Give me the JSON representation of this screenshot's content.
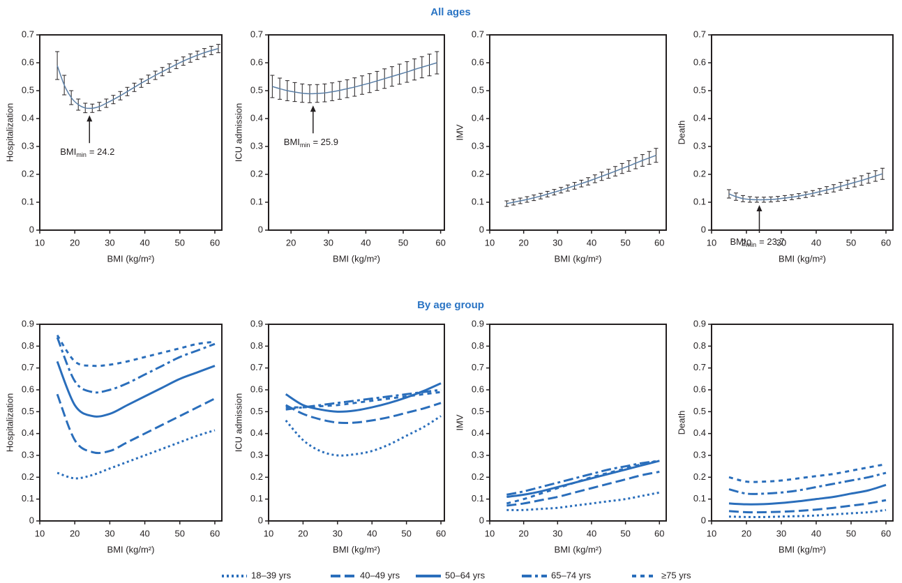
{
  "sections": [
    "All ages",
    "By age group"
  ],
  "chart_data": [
    {
      "type": "line",
      "y_label": "Hospitalization",
      "x_label": "BMI (kg/m²)",
      "color": "#231f20",
      "x": [
        15,
        17,
        19,
        21,
        23,
        25,
        27,
        29,
        31,
        33,
        35,
        37,
        39,
        41,
        43,
        45,
        47,
        49,
        51,
        53,
        55,
        57,
        59,
        61
      ],
      "values": [
        0.59,
        0.52,
        0.475,
        0.45,
        0.438,
        0.437,
        0.443,
        0.455,
        0.468,
        0.482,
        0.497,
        0.512,
        0.527,
        0.541,
        0.555,
        0.568,
        0.581,
        0.594,
        0.606,
        0.617,
        0.627,
        0.636,
        0.644,
        0.651
      ],
      "errors": [
        0.05,
        0.035,
        0.025,
        0.02,
        0.017,
        0.015,
        0.015,
        0.015,
        0.015,
        0.015,
        0.015,
        0.015,
        0.015,
        0.015,
        0.015,
        0.015,
        0.015,
        0.015,
        0.015,
        0.015,
        0.015,
        0.015,
        0.015,
        0.015
      ],
      "xlim": [
        10,
        62
      ],
      "ylim": [
        0,
        0.7
      ],
      "xticks": [
        10,
        20,
        30,
        40,
        50,
        60
      ],
      "yticks": [
        0,
        0.1,
        0.2,
        0.3,
        0.4,
        0.5,
        0.6,
        0.7
      ],
      "annotation": {
        "text": "BMI",
        "subscript": "min",
        "value_label": "= 24.2",
        "x": 24.2
      }
    },
    {
      "type": "line",
      "y_label": "ICU admission",
      "x_label": "BMI (kg/m²)",
      "color": "#231f20",
      "x": [
        15,
        17,
        19,
        21,
        23,
        25,
        27,
        29,
        31,
        33,
        35,
        37,
        39,
        41,
        43,
        45,
        47,
        49,
        51,
        53,
        55,
        57,
        59
      ],
      "values": [
        0.515,
        0.507,
        0.5,
        0.495,
        0.491,
        0.489,
        0.49,
        0.492,
        0.496,
        0.501,
        0.507,
        0.513,
        0.52,
        0.527,
        0.535,
        0.543,
        0.551,
        0.559,
        0.567,
        0.576,
        0.584,
        0.592,
        0.6
      ],
      "errors": [
        0.04,
        0.038,
        0.036,
        0.034,
        0.033,
        0.032,
        0.032,
        0.032,
        0.032,
        0.032,
        0.032,
        0.033,
        0.033,
        0.034,
        0.034,
        0.035,
        0.035,
        0.036,
        0.037,
        0.038,
        0.038,
        0.039,
        0.04
      ],
      "xlim": [
        14,
        61
      ],
      "ylim": [
        0,
        0.7
      ],
      "xticks": [
        20,
        30,
        40,
        50,
        60
      ],
      "yticks": [
        0,
        0.1,
        0.2,
        0.3,
        0.4,
        0.5,
        0.6,
        0.7
      ],
      "annotation": {
        "text": "BMI",
        "subscript": "min",
        "value_label": "= 25.9",
        "x": 25.9
      }
    },
    {
      "type": "line",
      "y_label": "IMV",
      "x_label": "BMI (kg/m²)",
      "color": "#231f20",
      "x": [
        15,
        17,
        19,
        21,
        23,
        25,
        27,
        29,
        31,
        33,
        35,
        37,
        39,
        41,
        43,
        45,
        47,
        49,
        51,
        53,
        55,
        57,
        59
      ],
      "values": [
        0.095,
        0.1,
        0.105,
        0.11,
        0.116,
        0.122,
        0.129,
        0.136,
        0.143,
        0.151,
        0.159,
        0.167,
        0.175,
        0.184,
        0.193,
        0.202,
        0.211,
        0.221,
        0.23,
        0.24,
        0.25,
        0.259,
        0.268
      ],
      "errors": [
        0.01,
        0.01,
        0.01,
        0.01,
        0.01,
        0.01,
        0.01,
        0.01,
        0.01,
        0.011,
        0.012,
        0.012,
        0.013,
        0.014,
        0.015,
        0.016,
        0.017,
        0.018,
        0.019,
        0.02,
        0.021,
        0.023,
        0.025
      ],
      "xlim": [
        10,
        62
      ],
      "ylim": [
        0,
        0.7
      ],
      "xticks": [
        10,
        20,
        30,
        40,
        50,
        60
      ],
      "yticks": [
        0,
        0.1,
        0.2,
        0.3,
        0.4,
        0.5,
        0.6,
        0.7
      ]
    },
    {
      "type": "line",
      "y_label": "Death",
      "x_label": "BMI (kg/m²)",
      "color": "#231f20",
      "x": [
        15,
        17,
        19,
        21,
        23,
        25,
        27,
        29,
        31,
        33,
        35,
        37,
        39,
        41,
        43,
        45,
        47,
        49,
        51,
        53,
        55,
        57,
        59
      ],
      "values": [
        0.13,
        0.12,
        0.113,
        0.11,
        0.109,
        0.109,
        0.11,
        0.112,
        0.115,
        0.118,
        0.122,
        0.127,
        0.132,
        0.138,
        0.144,
        0.15,
        0.157,
        0.164,
        0.171,
        0.178,
        0.186,
        0.194,
        0.202
      ],
      "errors": [
        0.015,
        0.013,
        0.011,
        0.01,
        0.009,
        0.009,
        0.009,
        0.009,
        0.009,
        0.009,
        0.009,
        0.01,
        0.01,
        0.011,
        0.012,
        0.013,
        0.014,
        0.015,
        0.016,
        0.017,
        0.018,
        0.019,
        0.02
      ],
      "xlim": [
        10,
        62
      ],
      "ylim": [
        0,
        0.7
      ],
      "xticks": [
        10,
        20,
        30,
        40,
        50,
        60
      ],
      "yticks": [
        0,
        0.1,
        0.2,
        0.3,
        0.4,
        0.5,
        0.6,
        0.7
      ],
      "annotation": {
        "text": "BMI",
        "subscript": "min",
        "value_label": "= 23.7",
        "x": 23.7
      }
    },
    {
      "type": "line",
      "y_label": "Hospitalization",
      "x_label": "BMI (kg/m²)",
      "x": [
        15,
        20,
        25,
        30,
        35,
        40,
        45,
        50,
        55,
        60
      ],
      "series": [
        {
          "name": "18–39 yrs",
          "color": "#2a6ebb",
          "dash": "dotted",
          "values": [
            0.22,
            0.195,
            0.21,
            0.24,
            0.27,
            0.3,
            0.33,
            0.36,
            0.39,
            0.415
          ]
        },
        {
          "name": "40–49 yrs",
          "color": "#2a6ebb",
          "dash": "dashed",
          "values": [
            0.58,
            0.37,
            0.315,
            0.32,
            0.36,
            0.4,
            0.44,
            0.48,
            0.52,
            0.56
          ]
        },
        {
          "name": "50–64 yrs",
          "color": "#2a6ebb",
          "dash": "solid",
          "values": [
            0.73,
            0.53,
            0.48,
            0.49,
            0.53,
            0.57,
            0.61,
            0.65,
            0.68,
            0.71
          ]
        },
        {
          "name": "65–74 yrs",
          "color": "#2a6ebb",
          "dash": "dashdot",
          "values": [
            0.84,
            0.64,
            0.59,
            0.6,
            0.63,
            0.67,
            0.71,
            0.75,
            0.78,
            0.81
          ]
        },
        {
          "name": "≥75 yrs",
          "color": "#2a6ebb",
          "dash": "short",
          "values": [
            0.85,
            0.73,
            0.71,
            0.715,
            0.73,
            0.75,
            0.77,
            0.79,
            0.81,
            0.82
          ]
        }
      ],
      "xlim": [
        10,
        62
      ],
      "ylim": [
        0,
        0.9
      ],
      "xticks": [
        10,
        20,
        30,
        40,
        50,
        60
      ],
      "yticks": [
        0,
        0.1,
        0.2,
        0.3,
        0.4,
        0.5,
        0.6,
        0.7,
        0.8,
        0.9
      ]
    },
    {
      "type": "line",
      "y_label": "ICU admission",
      "x_label": "BMI (kg/m²)",
      "x": [
        15,
        20,
        25,
        30,
        35,
        40,
        45,
        50,
        55,
        60
      ],
      "series": [
        {
          "name": "18–39 yrs",
          "color": "#2a6ebb",
          "dash": "dotted",
          "values": [
            0.46,
            0.37,
            0.32,
            0.3,
            0.305,
            0.32,
            0.35,
            0.39,
            0.43,
            0.48
          ]
        },
        {
          "name": "40–49 yrs",
          "color": "#2a6ebb",
          "dash": "dashed",
          "values": [
            0.53,
            0.49,
            0.465,
            0.45,
            0.45,
            0.46,
            0.475,
            0.495,
            0.515,
            0.54
          ]
        },
        {
          "name": "50–64 yrs",
          "color": "#2a6ebb",
          "dash": "solid",
          "values": [
            0.58,
            0.53,
            0.51,
            0.5,
            0.505,
            0.52,
            0.54,
            0.565,
            0.595,
            0.63
          ]
        },
        {
          "name": "65–74 yrs",
          "color": "#2a6ebb",
          "dash": "dashdot",
          "values": [
            0.51,
            0.52,
            0.53,
            0.54,
            0.55,
            0.56,
            0.57,
            0.58,
            0.59,
            0.6
          ]
        },
        {
          "name": "≥75 yrs",
          "color": "#2a6ebb",
          "dash": "short",
          "values": [
            0.52,
            0.52,
            0.525,
            0.53,
            0.54,
            0.55,
            0.56,
            0.57,
            0.58,
            0.59
          ]
        }
      ],
      "xlim": [
        10,
        61
      ],
      "ylim": [
        0,
        0.9
      ],
      "xticks": [
        10,
        20,
        30,
        40,
        50,
        60
      ],
      "yticks": [
        0,
        0.1,
        0.2,
        0.3,
        0.4,
        0.5,
        0.6,
        0.7,
        0.8,
        0.9
      ]
    },
    {
      "type": "line",
      "y_label": "IMV",
      "x_label": "BMI (kg/m²)",
      "x": [
        15,
        20,
        25,
        30,
        35,
        40,
        45,
        50,
        55,
        60
      ],
      "series": [
        {
          "name": "18–39 yrs",
          "color": "#2a6ebb",
          "dash": "dotted",
          "values": [
            0.05,
            0.05,
            0.055,
            0.06,
            0.07,
            0.08,
            0.09,
            0.1,
            0.115,
            0.13
          ]
        },
        {
          "name": "40–49 yrs",
          "color": "#2a6ebb",
          "dash": "dashed",
          "values": [
            0.07,
            0.08,
            0.095,
            0.11,
            0.13,
            0.15,
            0.17,
            0.19,
            0.21,
            0.225
          ]
        },
        {
          "name": "50–64 yrs",
          "color": "#2a6ebb",
          "dash": "solid",
          "values": [
            0.11,
            0.12,
            0.135,
            0.155,
            0.175,
            0.195,
            0.215,
            0.235,
            0.255,
            0.275
          ]
        },
        {
          "name": "65–74 yrs",
          "color": "#2a6ebb",
          "dash": "dashdot",
          "values": [
            0.12,
            0.135,
            0.155,
            0.175,
            0.195,
            0.215,
            0.235,
            0.25,
            0.265,
            0.275
          ]
        },
        {
          "name": "≥75 yrs",
          "color": "#2a6ebb",
          "dash": "short",
          "values": [
            0.08,
            0.1,
            0.125,
            0.15,
            0.175,
            0.2,
            0.22,
            0.24,
            0.26,
            0.275
          ]
        }
      ],
      "xlim": [
        10,
        62
      ],
      "ylim": [
        0,
        0.9
      ],
      "xticks": [
        10,
        20,
        30,
        40,
        50,
        60
      ],
      "yticks": [
        0,
        0.1,
        0.2,
        0.3,
        0.4,
        0.5,
        0.6,
        0.7,
        0.8,
        0.9
      ]
    },
    {
      "type": "line",
      "y_label": "Death",
      "x_label": "BMI (kg/m²)",
      "x": [
        15,
        20,
        25,
        30,
        35,
        40,
        45,
        50,
        55,
        60
      ],
      "series": [
        {
          "name": "18–39 yrs",
          "color": "#2a6ebb",
          "dash": "dotted",
          "values": [
            0.02,
            0.018,
            0.018,
            0.02,
            0.022,
            0.025,
            0.03,
            0.035,
            0.04,
            0.05
          ]
        },
        {
          "name": "40–49 yrs",
          "color": "#2a6ebb",
          "dash": "dashed",
          "values": [
            0.045,
            0.04,
            0.04,
            0.042,
            0.046,
            0.052,
            0.06,
            0.07,
            0.08,
            0.095
          ]
        },
        {
          "name": "50–64 yrs",
          "color": "#2a6ebb",
          "dash": "solid",
          "values": [
            0.08,
            0.076,
            0.077,
            0.082,
            0.09,
            0.1,
            0.11,
            0.125,
            0.14,
            0.165
          ]
        },
        {
          "name": "65–74 yrs",
          "color": "#2a6ebb",
          "dash": "dashdot",
          "values": [
            0.145,
            0.125,
            0.125,
            0.13,
            0.14,
            0.155,
            0.17,
            0.185,
            0.2,
            0.22
          ]
        },
        {
          "name": "≥75 yrs",
          "color": "#2a6ebb",
          "dash": "short",
          "values": [
            0.2,
            0.18,
            0.18,
            0.185,
            0.195,
            0.205,
            0.215,
            0.23,
            0.245,
            0.26
          ]
        }
      ],
      "xlim": [
        10,
        62
      ],
      "ylim": [
        0,
        0.9
      ],
      "xticks": [
        10,
        20,
        30,
        40,
        50,
        60
      ],
      "yticks": [
        0,
        0.1,
        0.2,
        0.3,
        0.4,
        0.5,
        0.6,
        0.7,
        0.8,
        0.9
      ]
    }
  ]
}
